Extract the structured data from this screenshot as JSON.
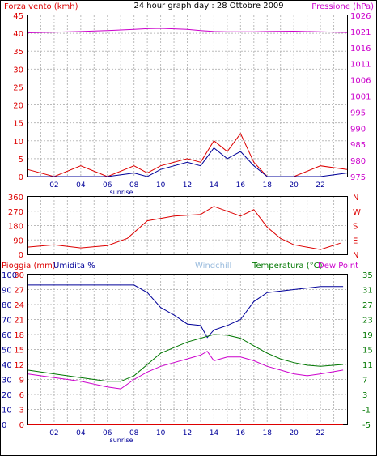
{
  "header": {
    "left": "Forza vento (kmh)",
    "center": "24 hour graph day : 28 Ottobre 2009",
    "right": "Pressione (hPa)"
  },
  "panels": {
    "wind": {
      "sunrise_label": "sunrise"
    },
    "direction": {
      "compass": [
        "N",
        "W",
        "S",
        "E",
        "N"
      ]
    },
    "lower": {
      "rain_label": "Pioggia (mm)",
      "hum_label": "Umidita %",
      "windchill_label": "Windchill",
      "temp_label": "Temperatura (°C)",
      "dew_label": "Dew Point",
      "sunrise_label": "sunrise"
    }
  },
  "colors": {
    "wind": "#dd0000",
    "gust": "#000099",
    "pressure": "#cc00cc",
    "direction": "#dd0000",
    "humidity": "#000099",
    "temperature": "#007700",
    "dewpoint": "#cc00cc",
    "rain": "#dd0000",
    "windchill": "#99bbdd",
    "grid": "#bbbbbb"
  },
  "chart_data": [
    {
      "type": "line",
      "panel": "wind-pressure",
      "x_ticks": [
        "02",
        "04",
        "06",
        "08",
        "10",
        "12",
        "14",
        "16",
        "18",
        "20",
        "22"
      ],
      "left_axis": {
        "title": "Forza vento (kmh)",
        "range": [
          0,
          45
        ],
        "ticks": [
          "0",
          "5",
          "10",
          "15",
          "20",
          "25",
          "30",
          "35",
          "40",
          "45"
        ]
      },
      "right_axis": {
        "title": "Pressione (hPa)",
        "range": [
          975,
          1026
        ],
        "ticks": [
          "975",
          "980",
          "985",
          "990",
          "995",
          "1001",
          "1006",
          "1011",
          "1016",
          "1021",
          "1026"
        ]
      },
      "x_hours": [
        0,
        2,
        4,
        6,
        8,
        9,
        10,
        12,
        13,
        14,
        15,
        16,
        17,
        18,
        20,
        22,
        24
      ],
      "series": [
        {
          "name": "Pressione (hPa)",
          "axis": "right",
          "values": [
            1020.5,
            1020.7,
            1020.9,
            1021.2,
            1021.6,
            1021.8,
            1021.9,
            1021.6,
            1021.2,
            1020.9,
            1020.8,
            1020.8,
            1020.8,
            1020.9,
            1021.0,
            1020.8,
            1020.6
          ]
        },
        {
          "name": "Forza vento (kmh)",
          "axis": "left",
          "values": [
            2,
            0,
            3,
            0,
            3,
            1,
            3,
            5,
            4,
            10,
            7,
            12,
            4,
            0,
            0,
            3,
            2
          ]
        },
        {
          "name": "Raffica",
          "axis": "left",
          "values": [
            0,
            0,
            0,
            0,
            1,
            0,
            2,
            4,
            3,
            8,
            5,
            7,
            3,
            0,
            0,
            0,
            1
          ]
        }
      ]
    },
    {
      "type": "line",
      "panel": "wind-direction",
      "left_axis": {
        "range": [
          0,
          360
        ],
        "ticks": [
          "0",
          "90",
          "180",
          "270",
          "360"
        ]
      },
      "right_labels": [
        "N",
        "W",
        "S",
        "E",
        "N"
      ],
      "x_hours": [
        0,
        2,
        4,
        6,
        7.5,
        9,
        11,
        13,
        14,
        15,
        16,
        17,
        18,
        19,
        20,
        22,
        23.5
      ],
      "series": [
        {
          "name": "Direzione",
          "values": [
            45,
            60,
            40,
            55,
            100,
            210,
            240,
            250,
            300,
            270,
            240,
            280,
            170,
            100,
            60,
            30,
            70
          ]
        }
      ]
    },
    {
      "type": "line",
      "panel": "temperature-humidity",
      "x_ticks": [
        "02",
        "04",
        "06",
        "08",
        "10",
        "12",
        "14",
        "16",
        "18",
        "20",
        "22"
      ],
      "left_axis_humidity": {
        "title": "Umidita %",
        "range": [
          0,
          100
        ],
        "ticks": [
          "0",
          "10",
          "20",
          "30",
          "40",
          "50",
          "60",
          "70",
          "80",
          "90",
          "100"
        ]
      },
      "left_axis_rain": {
        "title": "Pioggia (mm)",
        "range": [
          0,
          30
        ],
        "ticks": [
          "0",
          "3",
          "6",
          "9",
          "12",
          "15",
          "18",
          "21",
          "24",
          "27",
          "30"
        ]
      },
      "right_axis": {
        "title": "Temperatura (°C)",
        "range": [
          -5,
          35
        ],
        "ticks": [
          "-5",
          "-1",
          "3",
          "7",
          "11",
          "15",
          "19",
          "23",
          "27",
          "31",
          "35"
        ]
      },
      "x_hours": [
        0,
        2,
        4,
        6,
        7,
        8,
        9,
        10,
        11,
        12,
        13,
        13.5,
        14,
        15,
        16,
        17,
        18,
        19,
        20,
        21,
        22,
        23.7
      ],
      "series": [
        {
          "name": "Umidita %",
          "axis": "humidity",
          "values": [
            93,
            93,
            93,
            93,
            93,
            93,
            88,
            78,
            73,
            67,
            66,
            58,
            63,
            66,
            70,
            82,
            88,
            89,
            90,
            91,
            92,
            92
          ]
        },
        {
          "name": "Temperatura (°C)",
          "axis": "temp",
          "values": [
            9.5,
            8.5,
            7.5,
            6.5,
            6.5,
            8,
            11,
            14,
            15.5,
            17,
            18,
            18.5,
            19,
            18.8,
            18,
            16,
            14,
            12.5,
            11.5,
            10.8,
            10.5,
            11
          ]
        },
        {
          "name": "Dew Point",
          "axis": "temp",
          "values": [
            8.5,
            7.5,
            6.5,
            5,
            4.5,
            7,
            9,
            10.5,
            11.5,
            12.5,
            13.5,
            14.5,
            12,
            13,
            13,
            12,
            10.5,
            9.5,
            8.5,
            8,
            8.5,
            9.5
          ]
        },
        {
          "name": "Pioggia (mm)",
          "axis": "rain",
          "values": [
            0,
            0,
            0,
            0,
            0,
            0,
            0,
            0,
            0,
            0,
            0,
            0,
            0,
            0,
            0,
            0,
            0,
            0,
            0,
            0,
            0,
            0
          ]
        }
      ]
    }
  ]
}
